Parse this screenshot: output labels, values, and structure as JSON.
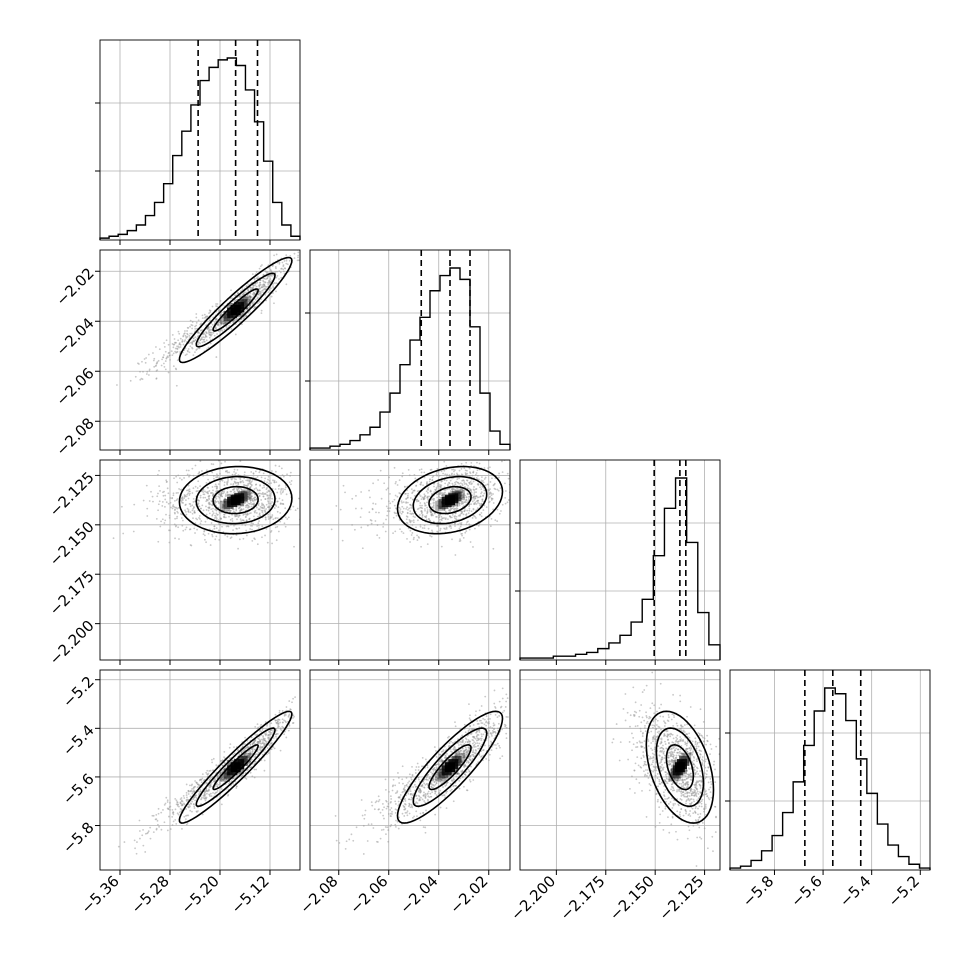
{
  "chart_data": {
    "type": "corner",
    "grid": true,
    "colors": {
      "axes": "#000000",
      "grid": "#b0b0b0",
      "points": "#9a9a9a",
      "density": "#000000"
    },
    "parameters": [
      {
        "center": -5.175,
        "lo": -5.235,
        "hi": -5.14,
        "range": [
          -5.392,
          -5.072
        ],
        "ticks": [
          -5.36,
          -5.28,
          -5.2,
          -5.12
        ],
        "tick_labels": [
          "−5.36",
          "−5.28",
          "−5.20",
          "−5.12"
        ],
        "hist_counts": [
          1,
          2,
          3,
          5,
          8,
          13,
          20,
          30,
          45,
          58,
          72,
          85,
          92,
          96,
          97,
          93,
          80,
          63,
          42,
          20,
          8,
          2
        ]
      },
      {
        "center": -2.0355,
        "lo": -2.047,
        "hi": -2.0275,
        "range": [
          -2.0915,
          -2.0115
        ],
        "ticks": [
          -2.08,
          -2.06,
          -2.04,
          -2.02
        ],
        "tick_labels": [
          "−2.08",
          "−2.06",
          "−2.04",
          "−2.02"
        ],
        "hist_counts": [
          1,
          1,
          2,
          3,
          5,
          8,
          12,
          20,
          30,
          45,
          58,
          70,
          84,
          92,
          96,
          90,
          65,
          30,
          10,
          3
        ]
      },
      {
        "center": -2.1375,
        "lo": -2.1505,
        "hi": -2.1345,
        "range": [
          -2.2184,
          -2.1172
        ],
        "ticks": [
          -2.2,
          -2.175,
          -2.15,
          -2.125
        ],
        "tick_labels": [
          "−2.200",
          "−2.175",
          "−2.150",
          "−2.125"
        ],
        "hist_counts": [
          1,
          1,
          1,
          2,
          2,
          3,
          4,
          6,
          9,
          13,
          20,
          32,
          55,
          80,
          96,
          62,
          25,
          8
        ]
      },
      {
        "center": -5.56,
        "lo": -5.675,
        "hi": -5.445,
        "range": [
          -5.983,
          -5.16
        ],
        "ticks": [
          -5.8,
          -5.6,
          -5.4,
          -5.2
        ],
        "tick_labels": [
          "−5.8",
          "−5.6",
          "−5.4",
          "−5.2"
        ],
        "hist_counts": [
          1,
          2,
          5,
          10,
          18,
          30,
          46,
          65,
          83,
          95,
          92,
          78,
          58,
          40,
          24,
          13,
          7,
          3,
          1
        ]
      }
    ],
    "pairs": [
      {
        "x": 0,
        "y": 1,
        "corr": 0.94,
        "sx": 0.045,
        "sy": 0.0105
      },
      {
        "x": 0,
        "y": 2,
        "corr": 0.05,
        "sx": 0.045,
        "sy": 0.0085
      },
      {
        "x": 1,
        "y": 2,
        "corr": 0.25,
        "sx": 0.0105,
        "sy": 0.0085
      },
      {
        "x": 0,
        "y": 3,
        "corr": 0.95,
        "sx": 0.045,
        "sy": 0.115
      },
      {
        "x": 1,
        "y": 3,
        "corr": 0.87,
        "sx": 0.0105,
        "sy": 0.115
      },
      {
        "x": 2,
        "y": 3,
        "corr": -0.4,
        "sx": 0.0085,
        "sy": 0.115
      }
    ],
    "contour_levels_sigma": [
      0.8,
      1.4,
      2.0
    ]
  }
}
